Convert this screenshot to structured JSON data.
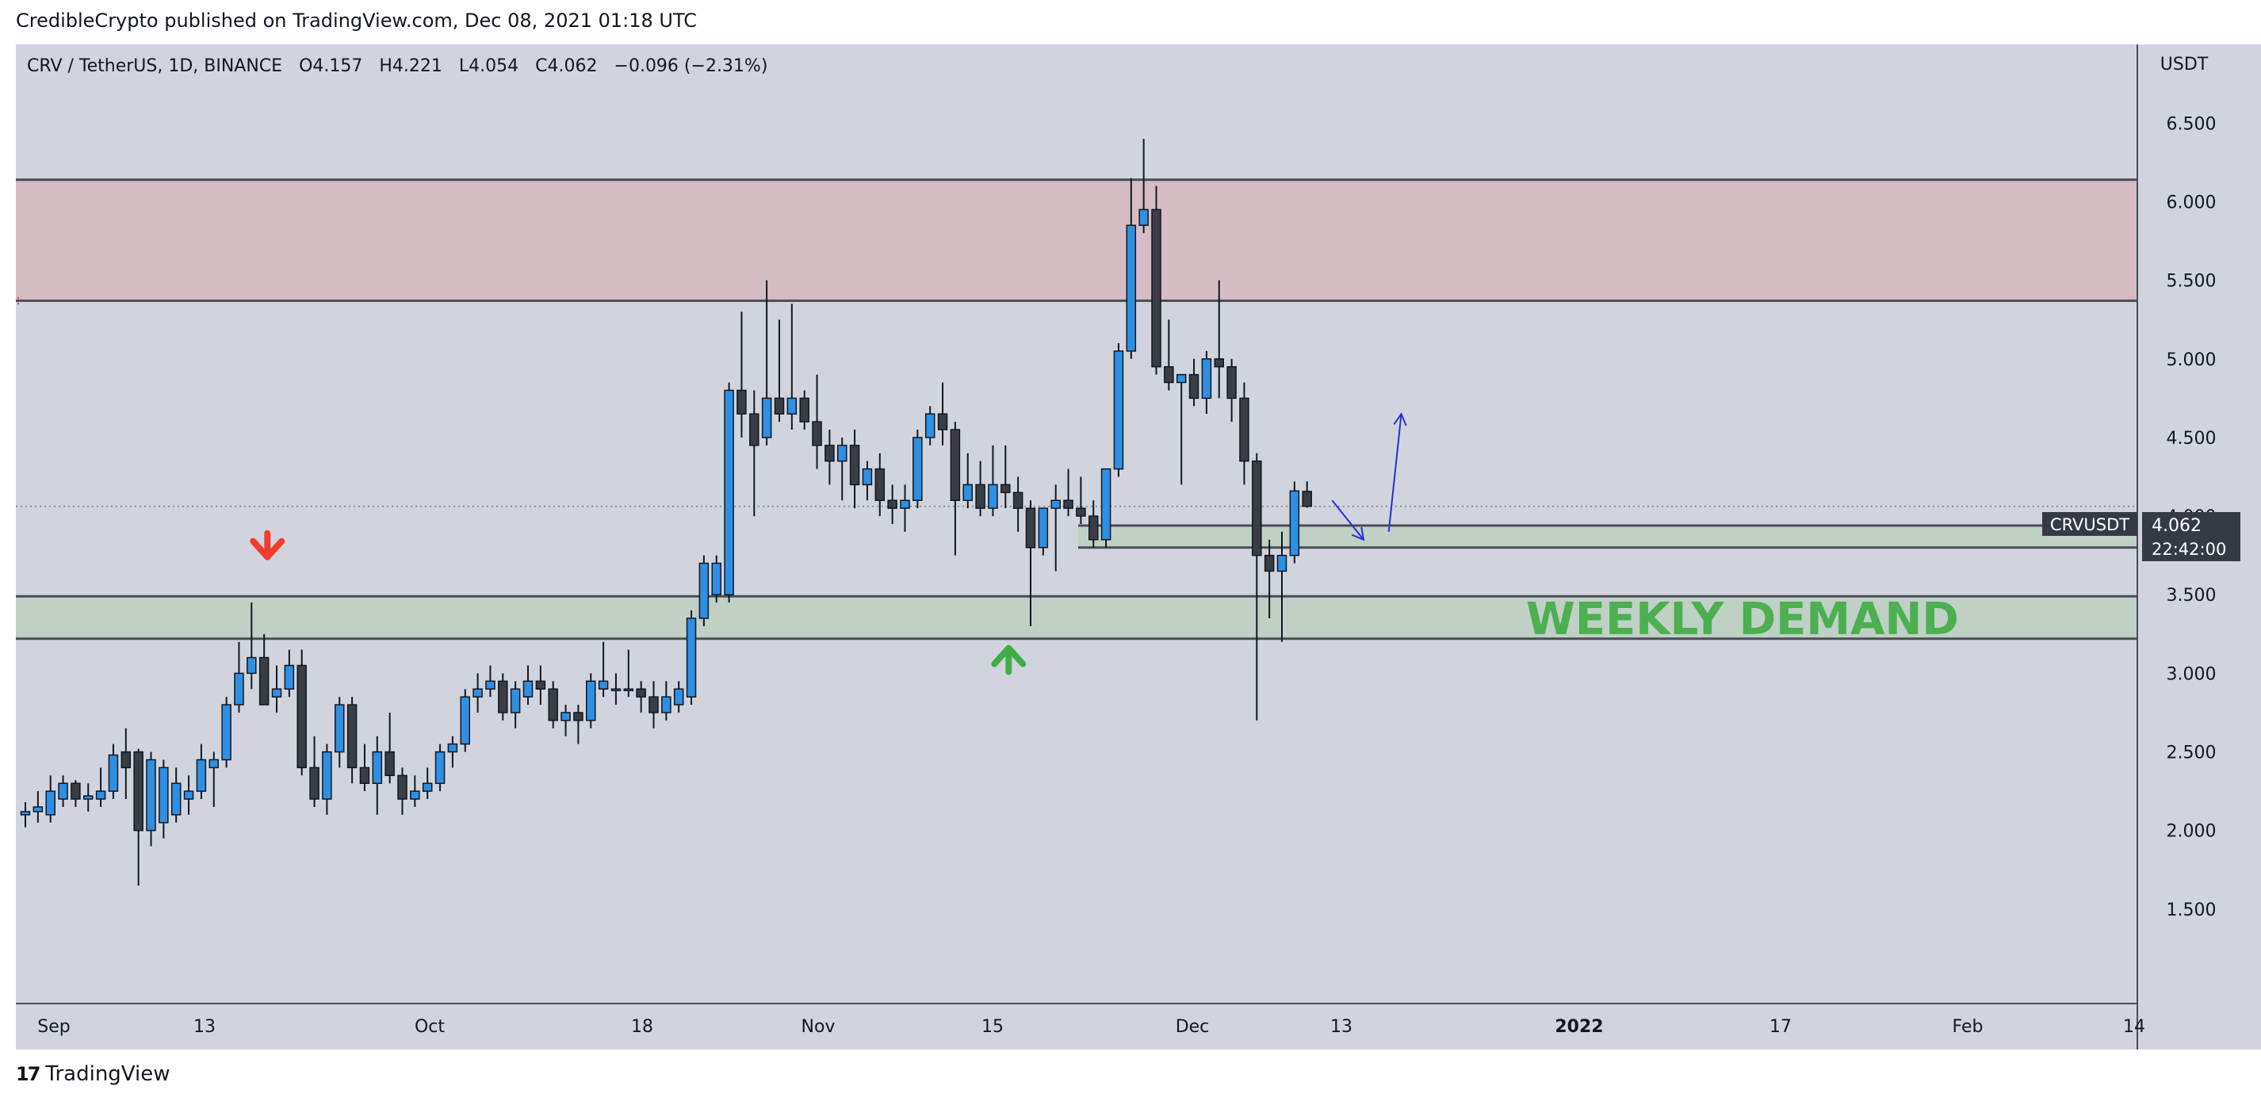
{
  "header": {
    "publisher": "CredibleCrypto published on TradingView.com, Dec 08, 2021 01:18 UTC"
  },
  "footer": {
    "logo": "17",
    "brand": "TradingView"
  },
  "colors": {
    "bullish": "#2e8fe3",
    "bearish": "#3b3d45",
    "supply_zone": "#d7bcc3",
    "demand_zone": "#bfd0c5",
    "zone_line": "#4a4d55",
    "demand_text": "#4caf50",
    "arrow_down": "#f23c2e",
    "arrow_up": "#3fae49",
    "drawing": "#2a2fd4"
  },
  "chart_data": {
    "type": "candlestick",
    "symbol": "CRV / TetherUS, 1D, BINANCE",
    "ohlc_label": {
      "o": "O",
      "o_val": "4.157",
      "h": "H",
      "h_val": "4.221",
      "l": "L",
      "l_val": "4.054",
      "c": "C",
      "c_val": "4.062",
      "change": "−0.096 (−2.31%)"
    },
    "y_axis": {
      "unit": "USDT",
      "ticks": [
        "6.500",
        "6.000",
        "5.500",
        "5.000",
        "4.500",
        "4.000",
        "3.500",
        "3.000",
        "2.500",
        "2.000",
        "1.500"
      ],
      "range": [
        1.0,
        6.9
      ]
    },
    "x_axis_labels": [
      "Sep",
      "13",
      "Oct",
      "18",
      "Nov",
      "15",
      "Dec",
      "13",
      "2022",
      "17",
      "Feb",
      "14"
    ],
    "last_price": {
      "symbol": "CRVUSDT",
      "price": 4.062,
      "price_label": "4.062",
      "countdown": "22:42:00"
    },
    "zones": [
      {
        "type": "supply",
        "low": 5.37,
        "high": 6.14
      },
      {
        "type": "demand",
        "low": 3.22,
        "high": 3.49,
        "label": "WEEKLY DEMAND"
      },
      {
        "type": "demand",
        "low": 3.8,
        "high": 3.94
      }
    ],
    "candles": [
      {
        "o": 2.1,
        "h": 2.18,
        "l": 2.02,
        "c": 2.12
      },
      {
        "o": 2.12,
        "h": 2.25,
        "l": 2.05,
        "c": 2.15
      },
      {
        "o": 2.1,
        "h": 2.35,
        "l": 2.05,
        "c": 2.25
      },
      {
        "o": 2.2,
        "h": 2.35,
        "l": 2.15,
        "c": 2.3
      },
      {
        "o": 2.3,
        "h": 2.32,
        "l": 2.15,
        "c": 2.2
      },
      {
        "o": 2.2,
        "h": 2.3,
        "l": 2.12,
        "c": 2.22
      },
      {
        "o": 2.2,
        "h": 2.4,
        "l": 2.15,
        "c": 2.25
      },
      {
        "o": 2.25,
        "h": 2.55,
        "l": 2.2,
        "c": 2.48
      },
      {
        "o": 2.5,
        "h": 2.65,
        "l": 2.2,
        "c": 2.4
      },
      {
        "o": 2.5,
        "h": 2.52,
        "l": 1.65,
        "c": 2.0
      },
      {
        "o": 2.0,
        "h": 2.5,
        "l": 1.9,
        "c": 2.45
      },
      {
        "o": 2.05,
        "h": 2.45,
        "l": 1.95,
        "c": 2.4
      },
      {
        "o": 2.1,
        "h": 2.4,
        "l": 2.05,
        "c": 2.3
      },
      {
        "o": 2.2,
        "h": 2.35,
        "l": 2.1,
        "c": 2.25
      },
      {
        "o": 2.25,
        "h": 2.55,
        "l": 2.2,
        "c": 2.45
      },
      {
        "o": 2.4,
        "h": 2.5,
        "l": 2.15,
        "c": 2.45
      },
      {
        "o": 2.45,
        "h": 2.85,
        "l": 2.4,
        "c": 2.8
      },
      {
        "o": 2.8,
        "h": 3.2,
        "l": 2.75,
        "c": 3.0
      },
      {
        "o": 3.0,
        "h": 3.45,
        "l": 2.9,
        "c": 3.1
      },
      {
        "o": 3.1,
        "h": 3.25,
        "l": 2.8,
        "c": 2.8
      },
      {
        "o": 2.85,
        "h": 3.05,
        "l": 2.75,
        "c": 2.9
      },
      {
        "o": 2.9,
        "h": 3.15,
        "l": 2.85,
        "c": 3.05
      },
      {
        "o": 3.05,
        "h": 3.15,
        "l": 2.35,
        "c": 2.4
      },
      {
        "o": 2.4,
        "h": 2.6,
        "l": 2.15,
        "c": 2.2
      },
      {
        "o": 2.2,
        "h": 2.55,
        "l": 2.1,
        "c": 2.5
      },
      {
        "o": 2.5,
        "h": 2.85,
        "l": 2.4,
        "c": 2.8
      },
      {
        "o": 2.8,
        "h": 2.85,
        "l": 2.3,
        "c": 2.4
      },
      {
        "o": 2.4,
        "h": 2.55,
        "l": 2.25,
        "c": 2.3
      },
      {
        "o": 2.3,
        "h": 2.6,
        "l": 2.1,
        "c": 2.5
      },
      {
        "o": 2.5,
        "h": 2.75,
        "l": 2.3,
        "c": 2.35
      },
      {
        "o": 2.35,
        "h": 2.4,
        "l": 2.1,
        "c": 2.2
      },
      {
        "o": 2.2,
        "h": 2.35,
        "l": 2.15,
        "c": 2.25
      },
      {
        "o": 2.25,
        "h": 2.4,
        "l": 2.2,
        "c": 2.3
      },
      {
        "o": 2.3,
        "h": 2.55,
        "l": 2.25,
        "c": 2.5
      },
      {
        "o": 2.5,
        "h": 2.6,
        "l": 2.4,
        "c": 2.55
      },
      {
        "o": 2.55,
        "h": 2.9,
        "l": 2.5,
        "c": 2.85
      },
      {
        "o": 2.85,
        "h": 3.0,
        "l": 2.75,
        "c": 2.9
      },
      {
        "o": 2.9,
        "h": 3.05,
        "l": 2.85,
        "c": 2.95
      },
      {
        "o": 2.95,
        "h": 3.0,
        "l": 2.7,
        "c": 2.75
      },
      {
        "o": 2.75,
        "h": 2.95,
        "l": 2.65,
        "c": 2.9
      },
      {
        "o": 2.85,
        "h": 3.05,
        "l": 2.8,
        "c": 2.95
      },
      {
        "o": 2.95,
        "h": 3.05,
        "l": 2.8,
        "c": 2.9
      },
      {
        "o": 2.9,
        "h": 2.95,
        "l": 2.65,
        "c": 2.7
      },
      {
        "o": 2.7,
        "h": 2.8,
        "l": 2.6,
        "c": 2.75
      },
      {
        "o": 2.75,
        "h": 2.8,
        "l": 2.55,
        "c": 2.7
      },
      {
        "o": 2.7,
        "h": 3.0,
        "l": 2.65,
        "c": 2.95
      },
      {
        "o": 2.9,
        "h": 3.2,
        "l": 2.85,
        "c": 2.95
      },
      {
        "o": 2.9,
        "h": 3.0,
        "l": 2.8,
        "c": 2.9
      },
      {
        "o": 2.9,
        "h": 3.15,
        "l": 2.85,
        "c": 2.9
      },
      {
        "o": 2.9,
        "h": 2.95,
        "l": 2.75,
        "c": 2.85
      },
      {
        "o": 2.85,
        "h": 2.95,
        "l": 2.65,
        "c": 2.75
      },
      {
        "o": 2.75,
        "h": 2.95,
        "l": 2.7,
        "c": 2.85
      },
      {
        "o": 2.8,
        "h": 2.95,
        "l": 2.75,
        "c": 2.9
      },
      {
        "o": 2.85,
        "h": 3.4,
        "l": 2.8,
        "c": 3.35
      },
      {
        "o": 3.35,
        "h": 3.75,
        "l": 3.3,
        "c": 3.7
      },
      {
        "o": 3.5,
        "h": 3.75,
        "l": 3.45,
        "c": 3.7
      },
      {
        "o": 3.5,
        "h": 4.85,
        "l": 3.45,
        "c": 4.8
      },
      {
        "o": 4.8,
        "h": 5.3,
        "l": 4.5,
        "c": 4.65
      },
      {
        "o": 4.65,
        "h": 4.8,
        "l": 4.0,
        "c": 4.45
      },
      {
        "o": 4.5,
        "h": 5.5,
        "l": 4.45,
        "c": 4.75
      },
      {
        "o": 4.75,
        "h": 5.25,
        "l": 4.6,
        "c": 4.65
      },
      {
        "o": 4.65,
        "h": 5.35,
        "l": 4.55,
        "c": 4.75
      },
      {
        "o": 4.75,
        "h": 4.8,
        "l": 4.55,
        "c": 4.6
      },
      {
        "o": 4.6,
        "h": 4.9,
        "l": 4.3,
        "c": 4.45
      },
      {
        "o": 4.45,
        "h": 4.55,
        "l": 4.2,
        "c": 4.35
      },
      {
        "o": 4.35,
        "h": 4.5,
        "l": 4.1,
        "c": 4.45
      },
      {
        "o": 4.45,
        "h": 4.55,
        "l": 4.05,
        "c": 4.2
      },
      {
        "o": 4.2,
        "h": 4.35,
        "l": 4.1,
        "c": 4.3
      },
      {
        "o": 4.3,
        "h": 4.4,
        "l": 4.0,
        "c": 4.1
      },
      {
        "o": 4.1,
        "h": 4.2,
        "l": 3.95,
        "c": 4.05
      },
      {
        "o": 4.05,
        "h": 4.2,
        "l": 3.9,
        "c": 4.1
      },
      {
        "o": 4.1,
        "h": 4.55,
        "l": 4.05,
        "c": 4.5
      },
      {
        "o": 4.5,
        "h": 4.7,
        "l": 4.45,
        "c": 4.65
      },
      {
        "o": 4.65,
        "h": 4.85,
        "l": 4.45,
        "c": 4.55
      },
      {
        "o": 4.55,
        "h": 4.6,
        "l": 3.75,
        "c": 4.1
      },
      {
        "o": 4.1,
        "h": 4.4,
        "l": 4.05,
        "c": 4.2
      },
      {
        "o": 4.2,
        "h": 4.35,
        "l": 4.0,
        "c": 4.05
      },
      {
        "o": 4.05,
        "h": 4.45,
        "l": 4.0,
        "c": 4.2
      },
      {
        "o": 4.2,
        "h": 4.45,
        "l": 4.05,
        "c": 4.15
      },
      {
        "o": 4.15,
        "h": 4.25,
        "l": 3.9,
        "c": 4.05
      },
      {
        "o": 4.05,
        "h": 4.1,
        "l": 3.3,
        "c": 3.8
      },
      {
        "o": 3.8,
        "h": 4.0,
        "l": 3.75,
        "c": 4.05
      },
      {
        "o": 4.05,
        "h": 4.2,
        "l": 3.65,
        "c": 4.1
      },
      {
        "o": 4.1,
        "h": 4.3,
        "l": 4.0,
        "c": 4.05
      },
      {
        "o": 4.05,
        "h": 4.25,
        "l": 3.95,
        "c": 4.0
      },
      {
        "o": 4.0,
        "h": 4.1,
        "l": 3.8,
        "c": 3.85
      },
      {
        "o": 3.85,
        "h": 4.3,
        "l": 3.8,
        "c": 4.3
      },
      {
        "o": 4.3,
        "h": 5.1,
        "l": 4.25,
        "c": 5.05
      },
      {
        "o": 5.05,
        "h": 6.15,
        "l": 5.0,
        "c": 5.85
      },
      {
        "o": 5.85,
        "h": 6.4,
        "l": 5.8,
        "c": 5.95
      },
      {
        "o": 5.95,
        "h": 6.1,
        "l": 4.9,
        "c": 4.95
      },
      {
        "o": 4.95,
        "h": 5.25,
        "l": 4.8,
        "c": 4.85
      },
      {
        "o": 4.85,
        "h": 4.9,
        "l": 4.2,
        "c": 4.9
      },
      {
        "o": 4.9,
        "h": 5.0,
        "l": 4.7,
        "c": 4.75
      },
      {
        "o": 4.75,
        "h": 5.05,
        "l": 4.65,
        "c": 5.0
      },
      {
        "o": 5.0,
        "h": 5.5,
        "l": 4.75,
        "c": 4.95
      },
      {
        "o": 4.95,
        "h": 5.0,
        "l": 4.6,
        "c": 4.75
      },
      {
        "o": 4.75,
        "h": 4.85,
        "l": 4.2,
        "c": 4.35
      },
      {
        "o": 4.35,
        "h": 4.4,
        "l": 2.7,
        "c": 3.75
      },
      {
        "o": 3.75,
        "h": 3.85,
        "l": 3.35,
        "c": 3.65
      },
      {
        "o": 3.65,
        "h": 3.9,
        "l": 3.2,
        "c": 3.75
      },
      {
        "o": 3.75,
        "h": 4.22,
        "l": 3.7,
        "c": 4.16
      },
      {
        "o": 4.157,
        "h": 4.221,
        "l": 4.054,
        "c": 4.062
      }
    ],
    "annotations": [
      {
        "kind": "arrow-down",
        "price": 3.78,
        "candle": 18
      },
      {
        "kind": "arrow-up",
        "price": 3.12,
        "candle": 78
      },
      {
        "kind": "drawing",
        "points": [
          [
            4.1,
            104
          ],
          [
            3.85,
            106.5
          ]
        ]
      },
      {
        "kind": "drawing",
        "points": [
          [
            3.9,
            108.5
          ],
          [
            4.65,
            109.5
          ]
        ]
      }
    ]
  }
}
